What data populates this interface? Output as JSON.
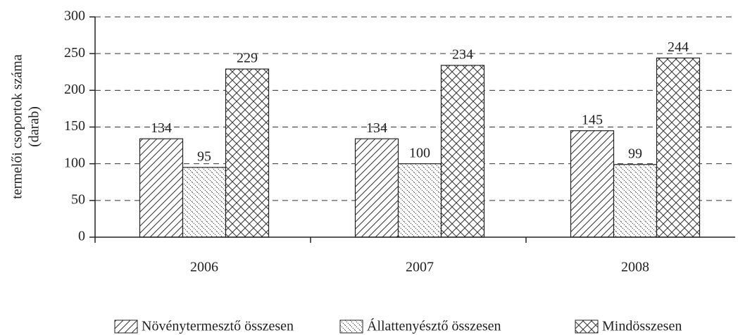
{
  "chart_data": {
    "type": "bar",
    "ylabel": [
      "termelői csoportok száma",
      "(darab)"
    ],
    "categories": [
      "2006",
      "2007",
      "2008"
    ],
    "series": [
      {
        "name": "Növénytermesztő összesen",
        "color": "#222222",
        "pattern": "diagonal",
        "values": [
          134,
          134,
          145
        ]
      },
      {
        "name": "Állattenyésztő összesen",
        "color": "#222222",
        "pattern": "dotted-diagonal",
        "values": [
          95,
          100,
          99
        ]
      },
      {
        "name": "Mindösszesen",
        "color": "#222222",
        "pattern": "crosshatch",
        "values": [
          229,
          234,
          244
        ]
      }
    ],
    "ylim": [
      0,
      300
    ],
    "yticks": [
      0,
      50,
      100,
      150,
      200,
      250,
      300
    ],
    "grid": true,
    "legend": "bottom"
  }
}
